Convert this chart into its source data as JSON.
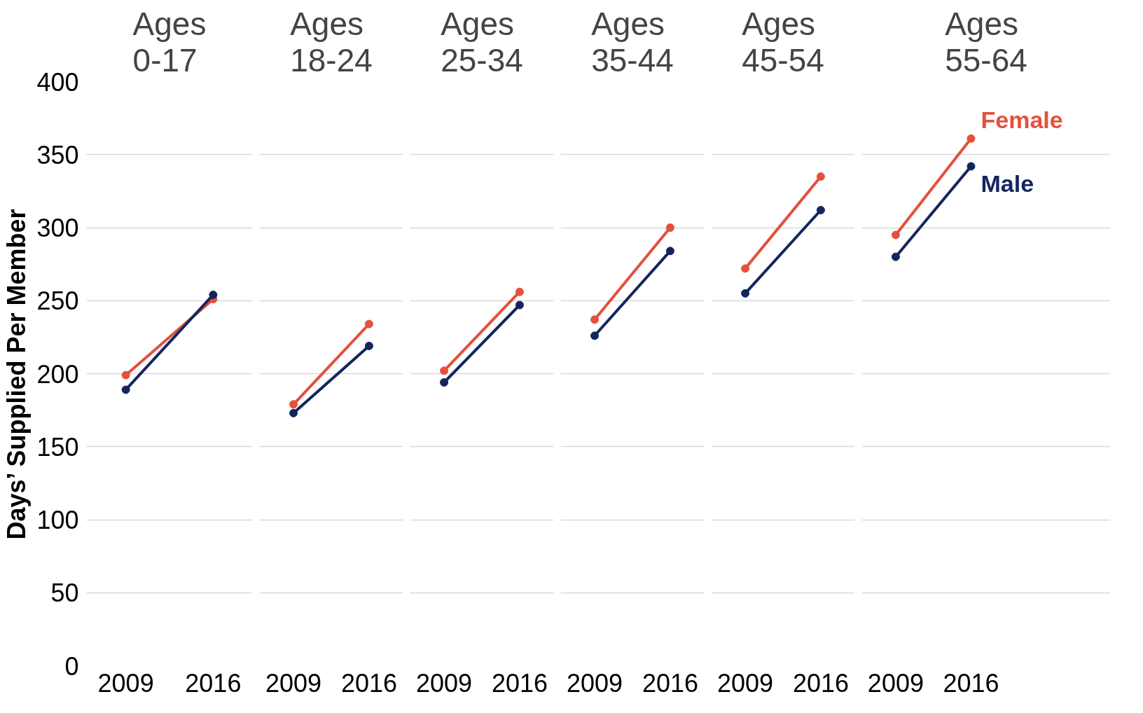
{
  "chart_data": [
    {
      "type": "line",
      "title": "Ages\n0-17",
      "ylabel": "Days’ Supplied Per Member",
      "categories": [
        "2009",
        "2016"
      ],
      "ylim": [
        0,
        400
      ],
      "yticks": [
        0,
        50,
        100,
        150,
        200,
        250,
        300,
        350,
        400
      ],
      "grid": "y",
      "legend": false,
      "marker": "circle",
      "line_style": "solid",
      "series": [
        {
          "color": "#e4503c",
          "values": [
            199,
            251
          ]
        },
        {
          "color": "#13255f",
          "values": [
            189,
            254
          ]
        }
      ]
    },
    {
      "type": "line",
      "title": "Ages\n18-24",
      "categories": [
        "2009",
        "2016"
      ],
      "ylim": [
        0,
        400
      ],
      "yticks": [
        0,
        50,
        100,
        150,
        200,
        250,
        300,
        350,
        400
      ],
      "grid": "y",
      "legend": false,
      "marker": "circle",
      "line_style": "solid",
      "tick_labels": "x",
      "series": [
        {
          "color": "#e4503c",
          "values": [
            179,
            234
          ]
        },
        {
          "color": "#13255f",
          "values": [
            173,
            219
          ]
        }
      ]
    },
    {
      "type": "line",
      "title": "Ages\n25-34",
      "categories": [
        "2009",
        "2016"
      ],
      "ylim": [
        0,
        400
      ],
      "yticks": [
        0,
        50,
        100,
        150,
        200,
        250,
        300,
        350,
        400
      ],
      "grid": "y",
      "legend": false,
      "marker": "circle",
      "line_style": "solid",
      "tick_labels": "x",
      "series": [
        {
          "color": "#e4503c",
          "values": [
            202,
            256
          ]
        },
        {
          "color": "#13255f",
          "values": [
            194,
            247
          ]
        }
      ]
    },
    {
      "type": "line",
      "title": "Ages\n35-44",
      "categories": [
        "2009",
        "2016"
      ],
      "ylim": [
        0,
        400
      ],
      "yticks": [
        0,
        50,
        100,
        150,
        200,
        250,
        300,
        350,
        400
      ],
      "grid": "y",
      "legend": false,
      "marker": "circle",
      "line_style": "solid",
      "tick_labels": "x",
      "series": [
        {
          "color": "#e4503c",
          "values": [
            237,
            300
          ]
        },
        {
          "color": "#13255f",
          "values": [
            226,
            284
          ]
        }
      ]
    },
    {
      "type": "line",
      "title": "Ages\n45-54",
      "categories": [
        "2009",
        "2016"
      ],
      "ylim": [
        0,
        400
      ],
      "yticks": [
        0,
        50,
        100,
        150,
        200,
        250,
        300,
        350,
        400
      ],
      "grid": "y",
      "legend": false,
      "marker": "circle",
      "line_style": "solid",
      "tick_labels": "x",
      "series": [
        {
          "color": "#e4503c",
          "values": [
            272,
            335
          ]
        },
        {
          "color": "#13255f",
          "values": [
            255,
            312
          ]
        }
      ]
    },
    {
      "type": "line",
      "title": "Ages\n55-64",
      "categories": [
        "2009",
        "2016"
      ],
      "ylim": [
        0,
        400
      ],
      "yticks": [
        0,
        50,
        100,
        150,
        200,
        250,
        300,
        350,
        400
      ],
      "grid": "y",
      "legend": false,
      "marker": "circle",
      "line_style": "solid",
      "tick_labels": "x",
      "series": [
        {
          "name": "Female",
          "color": "#e4503c",
          "values": [
            295,
            361
          ]
        },
        {
          "name": "Male",
          "color": "#13255f",
          "values": [
            280,
            342
          ]
        }
      ]
    }
  ]
}
